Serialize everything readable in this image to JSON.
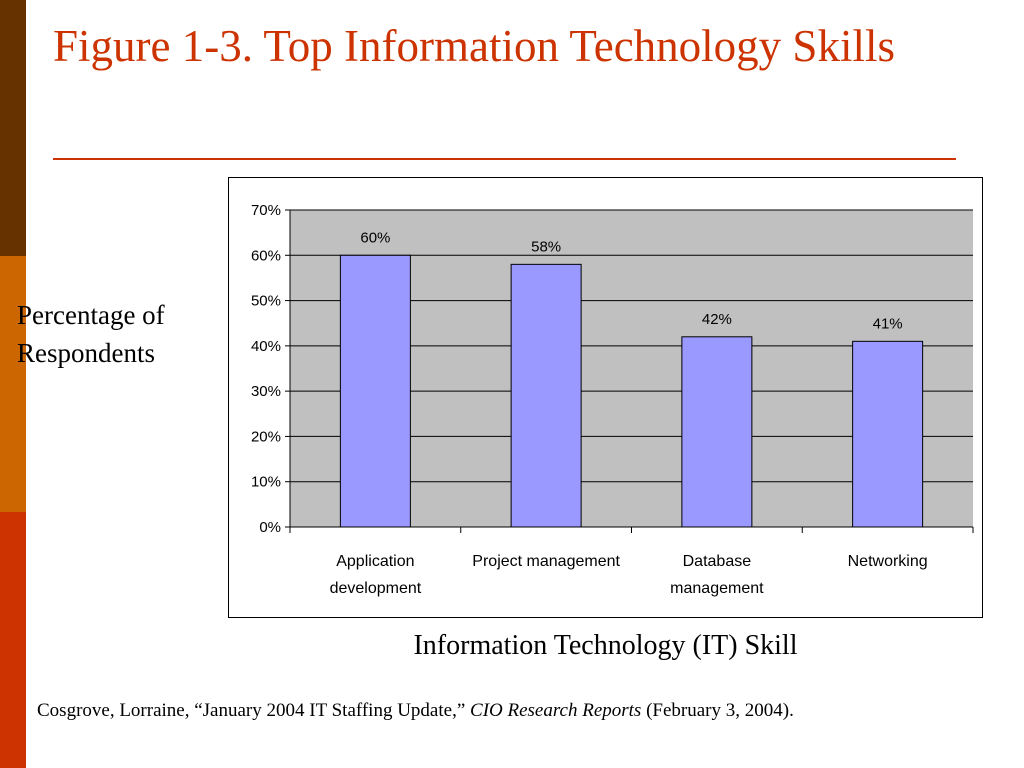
{
  "slide": {
    "title": "Figure 1-3. Top Information Technology Skills",
    "accent_color": "#cc3300",
    "stripe_colors": [
      "#663300",
      "#cc6600",
      "#cc3300"
    ]
  },
  "citation": {
    "prefix": "Cosgrove, Lorraine, “January 2004 IT Staffing Update,” ",
    "source": "CIO Research Reports",
    "suffix": " (February 3, 2004)."
  },
  "chart_data": {
    "type": "bar",
    "categories": [
      [
        "Application",
        "development"
      ],
      [
        "Project management"
      ],
      [
        "Database",
        "management"
      ],
      [
        "Networking"
      ]
    ],
    "values": [
      60,
      58,
      42,
      41
    ],
    "data_labels": [
      "60%",
      "58%",
      "42%",
      "41%"
    ],
    "ylim": [
      0,
      70
    ],
    "yticks": [
      "0%",
      "10%",
      "20%",
      "30%",
      "40%",
      "50%",
      "60%",
      "70%"
    ],
    "ylabel": "Percentage of Respondents",
    "xlabel": "Information Technology (IT) Skill",
    "grid": true,
    "bar_color": "#9999ff",
    "plot_background": "#c0c0c0"
  }
}
